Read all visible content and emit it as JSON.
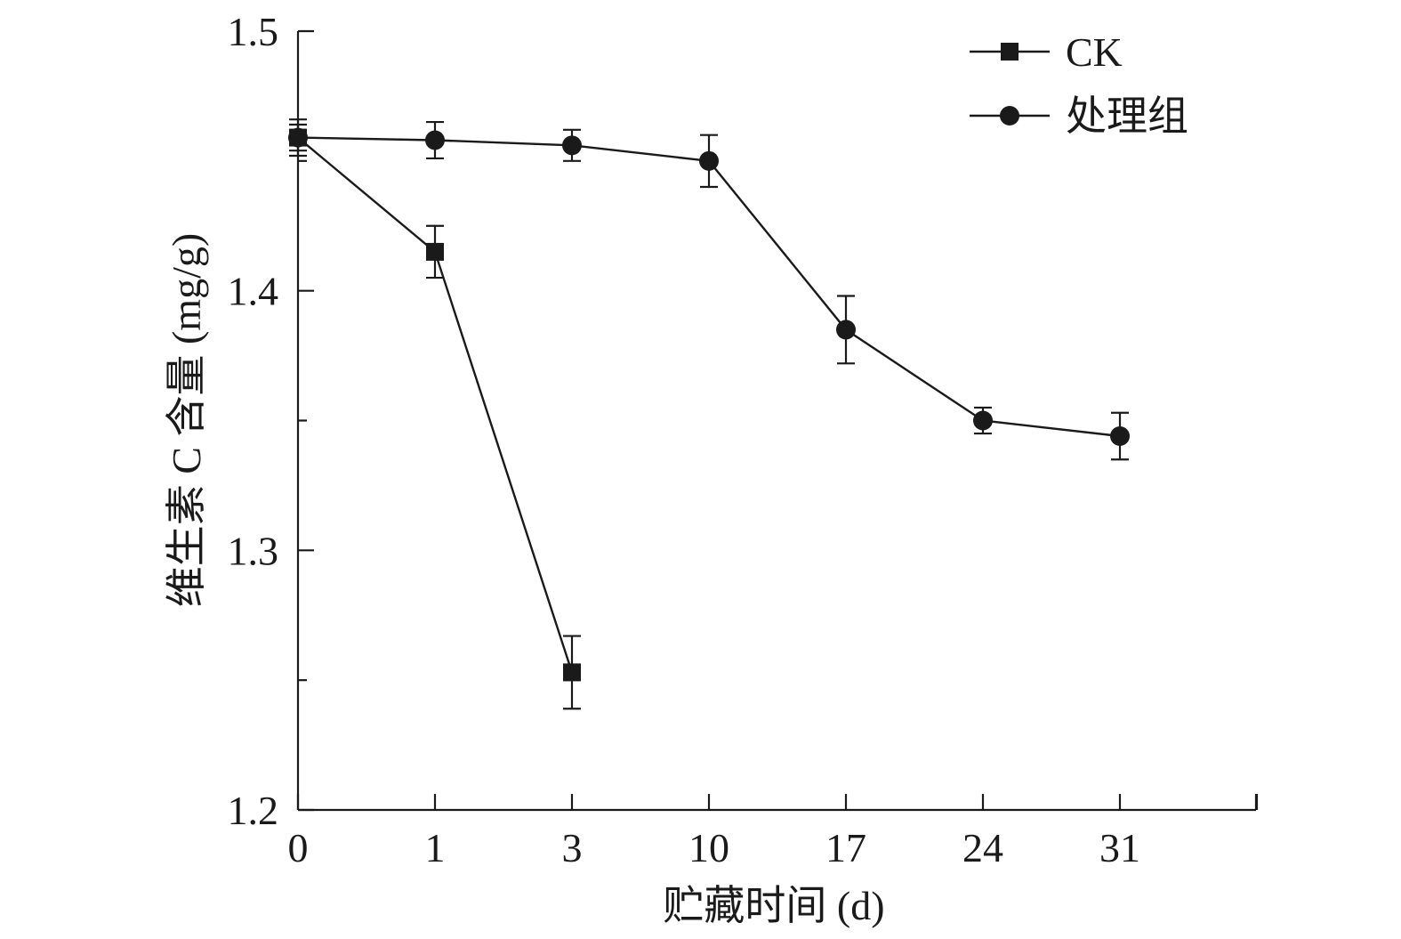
{
  "chart_data": {
    "type": "line",
    "x": [
      0,
      1,
      3,
      10,
      17,
      24,
      31
    ],
    "xlabel": "贮藏时间 (d)",
    "ylabel": "维生素 C 含量 (mg/g)",
    "ylim": [
      1.2,
      1.5
    ],
    "yticks": [
      "1.2",
      "1.3",
      "1.4",
      "1.5"
    ],
    "xticks": [
      "0",
      "1",
      "3",
      "10",
      "17",
      "24",
      "31"
    ],
    "legend_position": "top-right",
    "grid": false,
    "series": [
      {
        "name": "CK",
        "marker": "square",
        "x": [
          0,
          1,
          3
        ],
        "values": [
          1.459,
          1.415,
          1.253
        ],
        "errors": [
          0.007,
          0.01,
          0.014
        ]
      },
      {
        "name": "处理组",
        "marker": "circle",
        "x": [
          0,
          1,
          3,
          10,
          17,
          24,
          31
        ],
        "values": [
          1.459,
          1.458,
          1.456,
          1.45,
          1.385,
          1.35,
          1.344
        ],
        "errors": [
          0.005,
          0.007,
          0.006,
          0.01,
          0.013,
          0.005,
          0.009
        ]
      }
    ]
  }
}
